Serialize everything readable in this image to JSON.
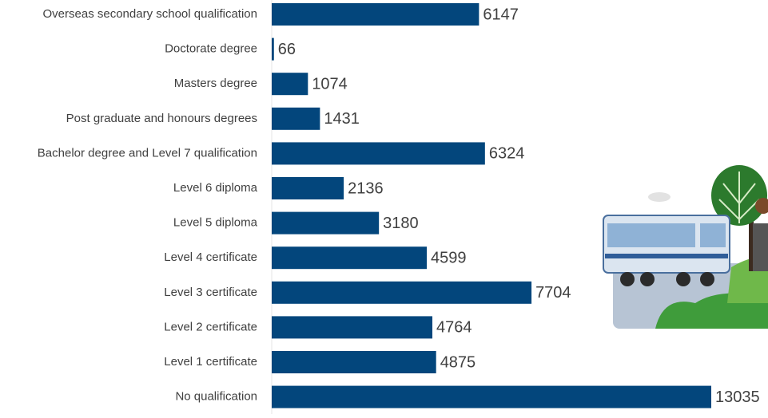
{
  "chart_data": {
    "type": "bar",
    "orientation": "horizontal",
    "categories": [
      "Overseas secondary school qualification",
      "Doctorate degree",
      "Masters degree",
      "Post graduate and honours degrees",
      "Bachelor degree and Level 7 qualification",
      "Level 6 diploma",
      "Level 5 diploma",
      "Level 4 certificate",
      "Level 3 certificate",
      "Level 2 certificate",
      "Level 1 certificate",
      "No qualification"
    ],
    "values": [
      6147,
      66,
      1074,
      1431,
      6324,
      2136,
      3180,
      4599,
      7704,
      4764,
      4875,
      13035
    ],
    "color": "#03467c",
    "xlim": [
      0,
      13035
    ]
  }
}
